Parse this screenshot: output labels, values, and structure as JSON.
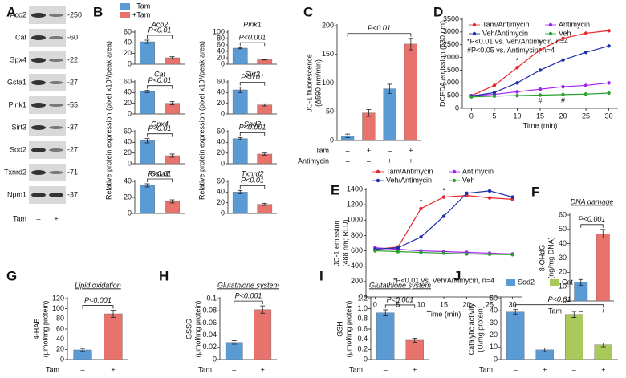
{
  "chart_data": [
    {
      "type": "blot",
      "panel": "A",
      "rows": [
        {
          "label": "Aco2",
          "mw": "-250"
        },
        {
          "label": "Cat",
          "mw": "-60"
        },
        {
          "label": "Gpx4",
          "mw": "-22"
        },
        {
          "label": "Gsta1",
          "mw": "-27"
        },
        {
          "label": "Pink1",
          "mw": "-55"
        },
        {
          "label": "Sirt3",
          "mw": "-37"
        },
        {
          "label": "Sod2",
          "mw": "-27"
        },
        {
          "label": "Txnrd2",
          "mw": "-71"
        },
        {
          "label": "Npm1",
          "mw": "-37"
        }
      ],
      "lanes": {
        "label": "Tam",
        "signs": [
          "–",
          "+"
        ]
      }
    },
    {
      "type": "bar-grid",
      "panel": "B",
      "legend": [
        {
          "name": "−Tam",
          "color": "#5b9bd5"
        },
        {
          "name": "+Tam",
          "color": "#e8736c"
        }
      ],
      "ylabel": "Relative protein expression (pixel x10³/peak area)",
      "plots": [
        {
          "title": "Aco2",
          "annotation": "P<0.01",
          "values": [
            42,
            12
          ],
          "errors": [
            3,
            2
          ],
          "ylim": [
            0,
            60
          ],
          "yticks": [
            0,
            20,
            40,
            60
          ]
        },
        {
          "title": "Cat",
          "annotation": "P<0.01",
          "values": [
            42,
            20
          ],
          "errors": [
            2,
            3
          ],
          "ylim": [
            0,
            60
          ],
          "yticks": [
            0,
            20,
            40,
            60
          ]
        },
        {
          "title": "Gpx4",
          "annotation": "P<0.01",
          "values": [
            43,
            15
          ],
          "errors": [
            4,
            3
          ],
          "ylim": [
            0,
            60
          ],
          "yticks": [
            0,
            20,
            40,
            60
          ]
        },
        {
          "title": "Gsta1",
          "annotation": "P<0.01",
          "values": [
            35,
            15
          ],
          "errors": [
            2,
            2
          ],
          "ylim": [
            0,
            40
          ],
          "yticks": [
            0,
            20,
            40
          ]
        },
        {
          "title": "Pink1",
          "annotation": "P<0.001",
          "values": [
            50,
            14
          ],
          "errors": [
            2,
            1
          ],
          "ylim": [
            0,
            100
          ],
          "yticks": [
            0,
            20,
            40,
            60,
            80,
            100
          ]
        },
        {
          "title": "Sirt3",
          "annotation": "P<0.01",
          "values": [
            45,
            17
          ],
          "errors": [
            5,
            2
          ],
          "ylim": [
            0,
            60
          ],
          "yticks": [
            0,
            20,
            40,
            60
          ]
        },
        {
          "title": "Sod2",
          "annotation": "P<0.001",
          "values": [
            47,
            18
          ],
          "errors": [
            2,
            2
          ],
          "ylim": [
            0,
            60
          ],
          "yticks": [
            0,
            20,
            40,
            60
          ]
        },
        {
          "title": "Txnrd2",
          "annotation": "P<0.01",
          "values": [
            40,
            17
          ],
          "errors": [
            3,
            2
          ],
          "ylim": [
            0,
            60
          ],
          "yticks": [
            0,
            20,
            40,
            60
          ]
        }
      ]
    },
    {
      "type": "bar",
      "panel": "C",
      "ylabel": [
        "JC-1 fluorescence",
        "(Δ590 nm/min)"
      ],
      "values": [
        8,
        48,
        90,
        168
      ],
      "errors": [
        3,
        6,
        8,
        10
      ],
      "colors": [
        "#5b9bd5",
        "#e8736c",
        "#5b9bd5",
        "#e8736c"
      ],
      "ylim": [
        0,
        200
      ],
      "yticks": [
        0,
        50,
        100,
        150,
        200
      ],
      "annotation": "P<0.01",
      "rows": [
        {
          "label": "Tam",
          "signs": [
            "–",
            "+",
            "–",
            "+"
          ]
        },
        {
          "label": "Antimycin",
          "signs": [
            "–",
            "–",
            "+",
            "+"
          ]
        }
      ]
    },
    {
      "type": "line",
      "panel": "D",
      "ylabel": [
        "DCFDA emission (530 nm)"
      ],
      "xlabel": "Time (min)",
      "x": [
        0,
        5,
        10,
        15,
        20,
        25,
        30
      ],
      "xlim": [
        -2,
        32
      ],
      "xticks": [
        0,
        5,
        10,
        15,
        20,
        25,
        30
      ],
      "ylim": [
        0,
        3500
      ],
      "yticks": [
        0,
        500,
        1000,
        1500,
        2000,
        2500,
        3000,
        3500
      ],
      "series": [
        {
          "name": "Tam/Antimycin",
          "color": "#e8262a",
          "values": [
            500,
            900,
            1600,
            2300,
            2750,
            2950,
            3050
          ]
        },
        {
          "name": "Antimycin",
          "color": "#a020f0",
          "values": [
            500,
            550,
            650,
            750,
            850,
            900,
            1000
          ]
        },
        {
          "name": "Veh/Antimycin",
          "color": "#1f2fa8",
          "values": [
            480,
            620,
            1000,
            1500,
            1900,
            2200,
            2450
          ]
        },
        {
          "name": "Veh",
          "color": "#2ca02c",
          "values": [
            450,
            480,
            500,
            520,
            540,
            560,
            600
          ]
        }
      ],
      "annotations": [
        "*P<0.01 vs. Veh/Antimycin, n=4",
        "#P<0.05 vs. Antimycin, n=4"
      ],
      "point_labels": [
        {
          "label": "*",
          "x": 10,
          "y": 1850
        },
        {
          "label": "*",
          "x": 15,
          "y": 2550
        },
        {
          "label": "#",
          "x": 15,
          "y": 280
        },
        {
          "label": "#",
          "x": 20,
          "y": 300
        }
      ]
    },
    {
      "type": "line",
      "panel": "E",
      "ylabel": [
        "JC-1 emission",
        "(488 nm; RLU)"
      ],
      "xlabel": "Time (min)",
      "x": [
        0,
        5,
        10,
        15,
        20,
        25,
        30
      ],
      "xlim": [
        -2,
        32
      ],
      "xticks": [
        0,
        5,
        10,
        15,
        20,
        25,
        30
      ],
      "ylim": [
        0,
        1400
      ],
      "yticks": [
        0,
        200,
        400,
        600,
        800,
        1000,
        1200,
        1400
      ],
      "series": [
        {
          "name": "Tam/Antimycin",
          "color": "#e8262a",
          "values": [
            620,
            650,
            1150,
            1300,
            1320,
            1290,
            1270
          ]
        },
        {
          "name": "Antimycin",
          "color": "#a020f0",
          "values": [
            640,
            620,
            600,
            590,
            580,
            570,
            560
          ]
        },
        {
          "name": "Veh/Antimycin",
          "color": "#1f2fa8",
          "values": [
            620,
            640,
            780,
            1050,
            1350,
            1380,
            1300
          ]
        },
        {
          "name": "Veh",
          "color": "#2ca02c",
          "values": [
            600,
            590,
            580,
            570,
            560,
            555,
            550
          ]
        }
      ],
      "annotations": [
        "*P<0.01 vs. Veh/Antimycin, n=4"
      ],
      "point_labels": [
        {
          "label": "*",
          "x": 10,
          "y": 1230
        },
        {
          "label": "*",
          "x": 15,
          "y": 1380
        }
      ]
    },
    {
      "type": "bar",
      "panel": "F",
      "title": "DNA damage",
      "ylabel": [
        "8-OHdG",
        "(ng/mg DNA)"
      ],
      "values": [
        13,
        47
      ],
      "errors": [
        2,
        3
      ],
      "colors": [
        "#5b9bd5",
        "#e8736c"
      ],
      "ylim": [
        0,
        60
      ],
      "yticks": [
        0,
        10,
        20,
        30,
        40,
        50,
        60
      ],
      "annotation": "P<0.001",
      "rows": [
        {
          "label": "Tam",
          "signs": [
            "–",
            "+"
          ]
        }
      ]
    },
    {
      "type": "bar",
      "panel": "G",
      "title": "Lipid oxidation",
      "ylabel": [
        "4-HAE",
        "(μmol/mg protein)"
      ],
      "values": [
        19,
        90
      ],
      "errors": [
        3,
        7
      ],
      "colors": [
        "#5b9bd5",
        "#e8736c"
      ],
      "ylim": [
        0,
        120
      ],
      "yticks": [
        0,
        20,
        40,
        60,
        80,
        100,
        120
      ],
      "annotation": "P<0.001",
      "rows": [
        {
          "label": "Tam",
          "signs": [
            "–",
            "+"
          ]
        }
      ]
    },
    {
      "type": "bar",
      "panel": "H",
      "title": "Glutathione system",
      "ylabel": [
        "GSSG",
        "(μmol/mg protein)"
      ],
      "values": [
        0.028,
        0.082
      ],
      "errors": [
        0.003,
        0.006
      ],
      "colors": [
        "#5b9bd5",
        "#e8736c"
      ],
      "ylim": [
        0,
        0.1
      ],
      "yticks": [
        0,
        0.02,
        0.04,
        0.06,
        0.08,
        0.1
      ],
      "annotation": "P<0.001",
      "rows": [
        {
          "label": "Tam",
          "signs": [
            "–",
            "+"
          ]
        }
      ]
    },
    {
      "type": "bar",
      "panel": "I",
      "title": "Glutathione system",
      "ylabel": [
        "GSH",
        "(μmol/mg protein)"
      ],
      "values": [
        0.92,
        0.38
      ],
      "errors": [
        0.06,
        0.04
      ],
      "colors": [
        "#5b9bd5",
        "#e8736c"
      ],
      "ylim": [
        0,
        1.2
      ],
      "yticks": [
        0,
        0.2,
        0.4,
        0.6,
        0.8,
        {
          "value": 1,
          "label": "1.0"
        },
        1.2
      ],
      "annotation": "P<0.001",
      "rows": [
        {
          "label": "Tam",
          "signs": [
            "–",
            "+"
          ]
        }
      ]
    },
    {
      "type": "bar",
      "panel": "J",
      "ylabel": [
        "Catalytic activity",
        "(U/mg protein)"
      ],
      "legend": [
        {
          "name": "Sod2",
          "color": "#5b9bd5"
        },
        {
          "name": "Cat",
          "color": "#a9c95b"
        }
      ],
      "values": [
        39,
        8,
        37,
        12
      ],
      "errors": [
        2,
        1.5,
        2.5,
        1.5
      ],
      "colors": [
        "#5b9bd5",
        "#5b9bd5",
        "#a9c95b",
        "#a9c95b"
      ],
      "ylim": [
        0,
        50
      ],
      "yticks": [
        0,
        10,
        20,
        30,
        40,
        50
      ],
      "annotation": "P<0.01",
      "rows": [
        {
          "label": "Tam",
          "signs": [
            "–",
            "+",
            "–",
            "+"
          ]
        }
      ]
    }
  ]
}
